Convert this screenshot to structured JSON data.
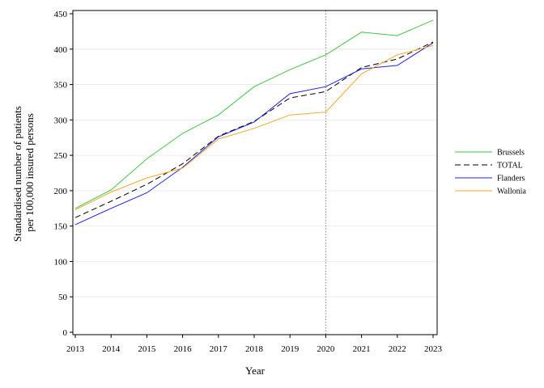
{
  "chart_data": {
    "type": "line",
    "xlabel": "Year",
    "ylabel_lines": [
      "Standardised number of patients",
      "per 100,000 insured persons"
    ],
    "x": [
      2013,
      2014,
      2015,
      2016,
      2017,
      2018,
      2019,
      2020,
      2021,
      2022,
      2023
    ],
    "xlim": [
      2013,
      2023
    ],
    "ylim": [
      0,
      450
    ],
    "yticks": [
      0,
      50,
      100,
      150,
      200,
      250,
      300,
      350,
      400,
      450
    ],
    "grid": true,
    "reference_line_x": 2020,
    "legend_position": "right",
    "series": [
      {
        "name": "Brussels",
        "color": "#3fc43f",
        "dash": "solid",
        "values": [
          175,
          201,
          245,
          281,
          307,
          347,
          371,
          392,
          424,
          419,
          441
        ]
      },
      {
        "name": "TOTAL",
        "color": "#000000",
        "dash": "dashed",
        "values": [
          162,
          185,
          209,
          238,
          277,
          298,
          331,
          340,
          374,
          386,
          410
        ]
      },
      {
        "name": "Flanders",
        "color": "#2020e0",
        "dash": "solid",
        "values": [
          152,
          175,
          197,
          233,
          276,
          297,
          337,
          347,
          372,
          377,
          409
        ]
      },
      {
        "name": "Wallonia",
        "color": "#f5a623",
        "dash": "solid",
        "values": [
          173,
          198,
          218,
          232,
          273,
          288,
          307,
          311,
          365,
          392,
          405
        ]
      }
    ]
  }
}
